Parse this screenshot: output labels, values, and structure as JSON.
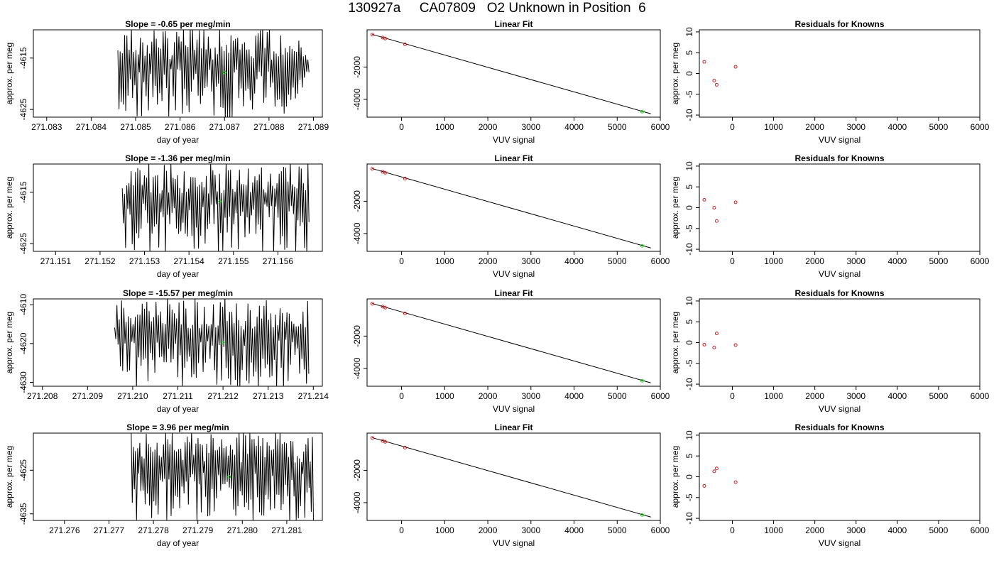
{
  "title": "130927a     CA07809   O2 Unknown in Position  6",
  "colors": {
    "axis": "#000000",
    "trace": "#000000",
    "known_points": "#cc2222",
    "unknown_point": "#22cc22"
  },
  "chart_data": [
    {
      "type": "line",
      "row": 1,
      "panel": "time-series",
      "title": "Slope =  -0.65  per meg/min",
      "xlabel": "day of year",
      "ylabel": "approx. per meg",
      "xlim": [
        271.0827,
        271.0892
      ],
      "ylim": [
        -4626.5,
        -4609.5
      ],
      "xticks": [
        "271.083",
        "271.084",
        "271.085",
        "271.086",
        "271.087",
        "271.088",
        "271.089"
      ],
      "yticks": [
        "-4615",
        "-4625"
      ],
      "trace_x_range": [
        271.0846,
        271.0889
      ],
      "trace_y_range": [
        -4627,
        -4609
      ],
      "unknown_marker": {
        "x": 271.087,
        "y": -4617.8
      }
    },
    {
      "type": "scatter",
      "row": 1,
      "panel": "linear-fit",
      "title": "Linear Fit",
      "xlabel": "VUV signal",
      "ylabel": "",
      "xlim": [
        -800,
        6000
      ],
      "ylim": [
        -5100,
        300
      ],
      "xticks": [
        "0",
        "1000",
        "2000",
        "3000",
        "4000",
        "5000",
        "6000"
      ],
      "yticks": [
        "-2000",
        "-4000"
      ],
      "fit_line": {
        "x": [
          -680,
          5780
        ],
        "y": [
          18,
          -4890
        ]
      },
      "knowns": {
        "x": [
          -680,
          -440,
          -380,
          80
        ],
        "y": [
          0,
          -180,
          -240,
          -600
        ]
      },
      "unknown": {
        "x": 5580,
        "y": -4760
      }
    },
    {
      "type": "scatter",
      "row": 1,
      "panel": "residuals",
      "title": "Residuals for Knowns",
      "xlabel": "VUV signal",
      "ylabel": "approx. per meg",
      "xlim": [
        -800,
        6000
      ],
      "ylim": [
        -10.5,
        10.5
      ],
      "xticks": [
        "0",
        "1000",
        "2000",
        "3000",
        "4000",
        "5000",
        "6000"
      ],
      "yticks": [
        "10",
        "5",
        "0",
        "-5",
        "-10"
      ],
      "x": [
        -680,
        -440,
        -380,
        80
      ],
      "y": [
        2.8,
        -1.7,
        -2.7,
        1.6
      ]
    },
    {
      "type": "line",
      "row": 2,
      "panel": "time-series",
      "title": "Slope =  -1.36  per meg/min",
      "xlabel": "day of year",
      "ylabel": "approx. per meg",
      "xlim": [
        271.1505,
        271.157
      ],
      "ylim": [
        -4626.5,
        -4609.5
      ],
      "xticks": [
        "271.151",
        "271.152",
        "271.153",
        "271.154",
        "271.155",
        "271.156"
      ],
      "yticks": [
        "-4615",
        "-4625"
      ],
      "trace_x_range": [
        271.1525,
        271.1567
      ],
      "trace_y_range": [
        -4627,
        -4609
      ],
      "unknown_marker": {
        "x": 271.1547,
        "y": -4616.8
      }
    },
    {
      "type": "scatter",
      "row": 2,
      "panel": "linear-fit",
      "title": "Linear Fit",
      "xlabel": "VUV signal",
      "ylabel": "",
      "xlim": [
        -800,
        6000
      ],
      "ylim": [
        -5100,
        300
      ],
      "xticks": [
        "0",
        "1000",
        "2000",
        "3000",
        "4000",
        "5000",
        "6000"
      ],
      "yticks": [
        "-2000",
        "-4000"
      ],
      "fit_line": {
        "x": [
          -680,
          5780
        ],
        "y": [
          18,
          -4890
        ]
      },
      "knowns": {
        "x": [
          -680,
          -440,
          -380,
          80
        ],
        "y": [
          0,
          -180,
          -240,
          -600
        ]
      },
      "unknown": {
        "x": 5580,
        "y": -4760
      }
    },
    {
      "type": "scatter",
      "row": 2,
      "panel": "residuals",
      "title": "Residuals for Knowns",
      "xlabel": "VUV signal",
      "ylabel": "approx. per meg",
      "xlim": [
        -800,
        6000
      ],
      "ylim": [
        -10.5,
        10.5
      ],
      "xticks": [
        "0",
        "1000",
        "2000",
        "3000",
        "4000",
        "5000",
        "6000"
      ],
      "yticks": [
        "10",
        "5",
        "0",
        "-5",
        "-10"
      ],
      "x": [
        -680,
        -440,
        -380,
        80
      ],
      "y": [
        1.9,
        0.0,
        -3.2,
        1.3
      ]
    },
    {
      "type": "line",
      "row": 3,
      "panel": "time-series",
      "title": "Slope =  -15.57  per meg/min",
      "xlabel": "day of year",
      "ylabel": "approx. per meg",
      "xlim": [
        271.2078,
        271.2142
      ],
      "ylim": [
        -4631,
        -4608.5
      ],
      "xticks": [
        "271.208",
        "271.209",
        "271.210",
        "271.211",
        "271.212",
        "271.213",
        "271.214"
      ],
      "yticks": [
        "-4610",
        "-4620",
        "-4630"
      ],
      "trace_x_range": [
        271.2096,
        271.2139
      ],
      "trace_y_range": [
        -4632,
        -4608
      ],
      "unknown_marker": {
        "x": 271.212,
        "y": -4619.7
      }
    },
    {
      "type": "scatter",
      "row": 3,
      "panel": "linear-fit",
      "title": "Linear Fit",
      "xlabel": "VUV signal",
      "ylabel": "",
      "xlim": [
        -800,
        6000
      ],
      "ylim": [
        -5100,
        300
      ],
      "xticks": [
        "0",
        "1000",
        "2000",
        "3000",
        "4000",
        "5000",
        "6000"
      ],
      "yticks": [
        "-2000",
        "-4000"
      ],
      "fit_line": {
        "x": [
          -680,
          5780
        ],
        "y": [
          18,
          -4890
        ]
      },
      "knowns": {
        "x": [
          -680,
          -440,
          -380,
          80
        ],
        "y": [
          0,
          -180,
          -240,
          -600
        ]
      },
      "unknown": {
        "x": 5580,
        "y": -4760
      }
    },
    {
      "type": "scatter",
      "row": 3,
      "panel": "residuals",
      "title": "Residuals for Knowns",
      "xlabel": "VUV signal",
      "ylabel": "approx. per meg",
      "xlim": [
        -800,
        6000
      ],
      "ylim": [
        -10.5,
        10.5
      ],
      "xticks": [
        "0",
        "1000",
        "2000",
        "3000",
        "4000",
        "5000",
        "6000"
      ],
      "yticks": [
        "10",
        "5",
        "0",
        "-5",
        "-10"
      ],
      "x": [
        -680,
        -440,
        -380,
        80
      ],
      "y": [
        -0.5,
        -1.2,
        2.2,
        -0.6
      ]
    },
    {
      "type": "line",
      "row": 4,
      "panel": "time-series",
      "title": "Slope =  3.96  per meg/min",
      "xlabel": "day of year",
      "ylabel": "approx. per meg",
      "xlim": [
        271.2753,
        271.2818
      ],
      "ylim": [
        -4636.5,
        -4616.5
      ],
      "xticks": [
        "271.276",
        "271.277",
        "271.278",
        "271.279",
        "271.280",
        "271.281"
      ],
      "yticks": [
        "-4625",
        "-4635"
      ],
      "trace_x_range": [
        271.2775,
        271.2816
      ],
      "trace_y_range": [
        -4637,
        -4616
      ],
      "unknown_marker": {
        "x": 271.2797,
        "y": -4626.5
      }
    },
    {
      "type": "scatter",
      "row": 4,
      "panel": "linear-fit",
      "title": "Linear Fit",
      "xlabel": "VUV signal",
      "ylabel": "",
      "xlim": [
        -800,
        6000
      ],
      "ylim": [
        -5100,
        300
      ],
      "xticks": [
        "0",
        "1000",
        "2000",
        "3000",
        "4000",
        "5000",
        "6000"
      ],
      "yticks": [
        "-2000",
        "-4000"
      ],
      "fit_line": {
        "x": [
          -680,
          5780
        ],
        "y": [
          18,
          -4890
        ]
      },
      "knowns": {
        "x": [
          -680,
          -440,
          -380,
          80
        ],
        "y": [
          0,
          -180,
          -240,
          -600
        ]
      },
      "unknown": {
        "x": 5580,
        "y": -4760
      }
    },
    {
      "type": "scatter",
      "row": 4,
      "panel": "residuals",
      "title": "Residuals for Knowns",
      "xlabel": "VUV signal",
      "ylabel": "approx. per meg",
      "xlim": [
        -800,
        6000
      ],
      "ylim": [
        -10.5,
        10.5
      ],
      "xticks": [
        "0",
        "1000",
        "2000",
        "3000",
        "4000",
        "5000",
        "6000"
      ],
      "yticks": [
        "10",
        "5",
        "0",
        "-5",
        "-10"
      ],
      "x": [
        -680,
        -440,
        -380,
        80
      ],
      "y": [
        -2.2,
        1.3,
        2.0,
        -1.3
      ]
    }
  ]
}
